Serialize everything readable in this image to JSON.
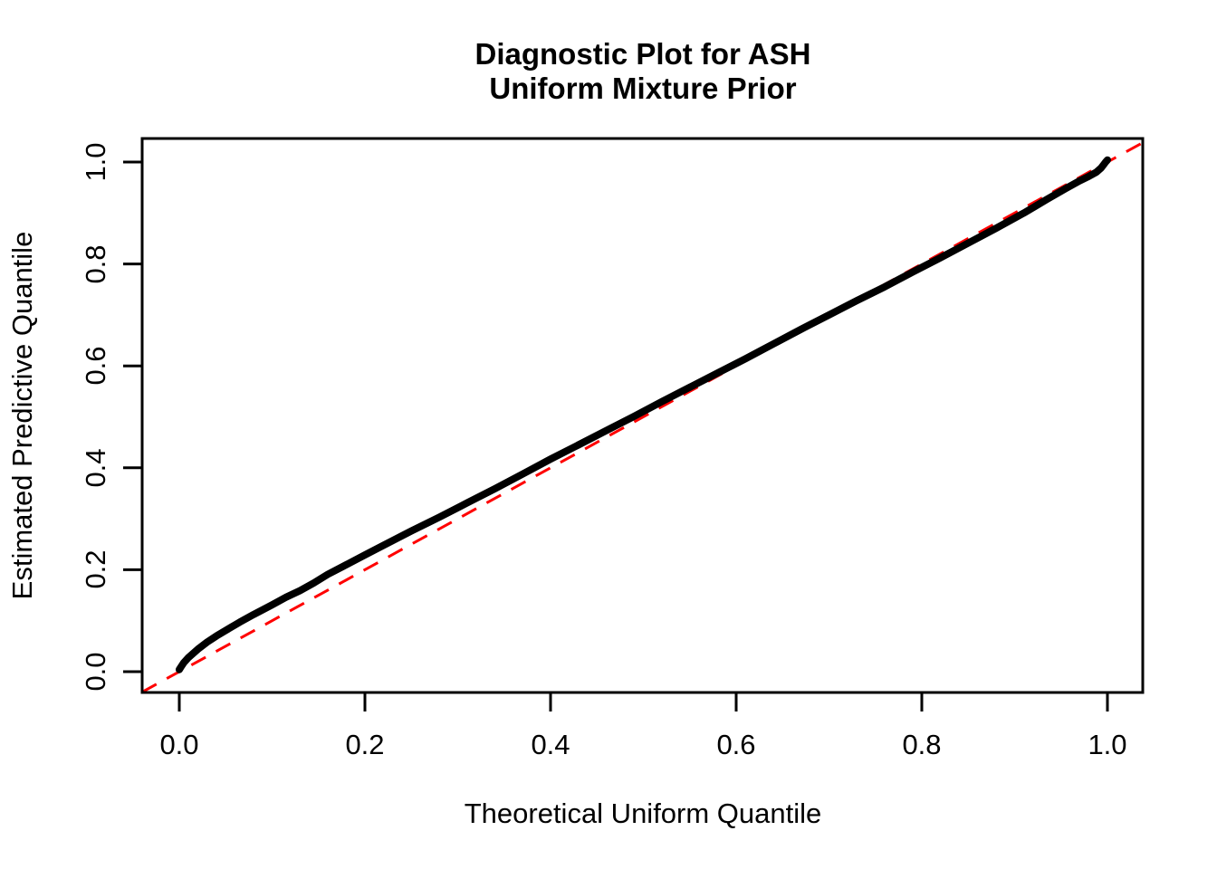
{
  "title": {
    "line1": "Diagnostic Plot for ASH",
    "line2": "Uniform Mixture Prior"
  },
  "colors": {
    "curve": "#000000",
    "reference_line": "#FF0000",
    "axis": "#000000",
    "background": "#FFFFFF"
  },
  "chart_data": {
    "type": "line",
    "title": "Diagnostic Plot for ASH\nUniform Mixture Prior",
    "xlabel": "Theoretical Uniform Quantile",
    "ylabel": "Estimated Predictive Quantile",
    "xlim": [
      -0.04,
      1.04
    ],
    "ylim": [
      -0.04,
      1.04
    ],
    "grid": false,
    "legend": null,
    "x_ticks": {
      "values": [
        0.0,
        0.2,
        0.4,
        0.6,
        0.8,
        1.0
      ],
      "labels": [
        "0.0",
        "0.2",
        "0.4",
        "0.6",
        "0.8",
        "1.0"
      ]
    },
    "y_ticks": {
      "values": [
        0.0,
        0.2,
        0.4,
        0.6,
        0.8,
        1.0
      ],
      "labels": [
        "0.0",
        "0.2",
        "0.4",
        "0.6",
        "0.8",
        "1.0"
      ]
    },
    "reference_line": {
      "name": "identity-line",
      "slope": 1,
      "intercept": 0,
      "color": "#FF0000",
      "style": "dashed",
      "width": 3
    },
    "series": [
      {
        "name": "estimated-vs-theoretical-quantile",
        "color": "#000000",
        "line_width": 8,
        "points": [
          [
            0.0,
            0.004
          ],
          [
            0.002,
            0.01
          ],
          [
            0.005,
            0.018
          ],
          [
            0.01,
            0.028
          ],
          [
            0.015,
            0.036
          ],
          [
            0.02,
            0.044
          ],
          [
            0.03,
            0.058
          ],
          [
            0.04,
            0.07
          ],
          [
            0.05,
            0.081
          ],
          [
            0.065,
            0.097
          ],
          [
            0.08,
            0.112
          ],
          [
            0.1,
            0.131
          ],
          [
            0.115,
            0.146
          ],
          [
            0.13,
            0.159
          ],
          [
            0.145,
            0.174
          ],
          [
            0.16,
            0.191
          ],
          [
            0.18,
            0.21
          ],
          [
            0.2,
            0.229
          ],
          [
            0.22,
            0.248
          ],
          [
            0.25,
            0.276
          ],
          [
            0.28,
            0.303
          ],
          [
            0.31,
            0.331
          ],
          [
            0.34,
            0.359
          ],
          [
            0.37,
            0.388
          ],
          [
            0.4,
            0.417
          ],
          [
            0.43,
            0.445
          ],
          [
            0.46,
            0.473
          ],
          [
            0.49,
            0.501
          ],
          [
            0.52,
            0.53
          ],
          [
            0.55,
            0.558
          ],
          [
            0.58,
            0.586
          ],
          [
            0.61,
            0.614
          ],
          [
            0.64,
            0.643
          ],
          [
            0.67,
            0.672
          ],
          [
            0.7,
            0.7
          ],
          [
            0.73,
            0.728
          ],
          [
            0.76,
            0.755
          ],
          [
            0.79,
            0.784
          ],
          [
            0.82,
            0.812
          ],
          [
            0.85,
            0.841
          ],
          [
            0.88,
            0.87
          ],
          [
            0.91,
            0.9
          ],
          [
            0.935,
            0.927
          ],
          [
            0.955,
            0.948
          ],
          [
            0.97,
            0.963
          ],
          [
            0.98,
            0.972
          ],
          [
            0.988,
            0.98
          ],
          [
            0.993,
            0.988
          ],
          [
            0.996,
            0.995
          ],
          [
            0.998,
            1.0
          ],
          [
            1.0,
            1.004
          ]
        ]
      }
    ]
  }
}
